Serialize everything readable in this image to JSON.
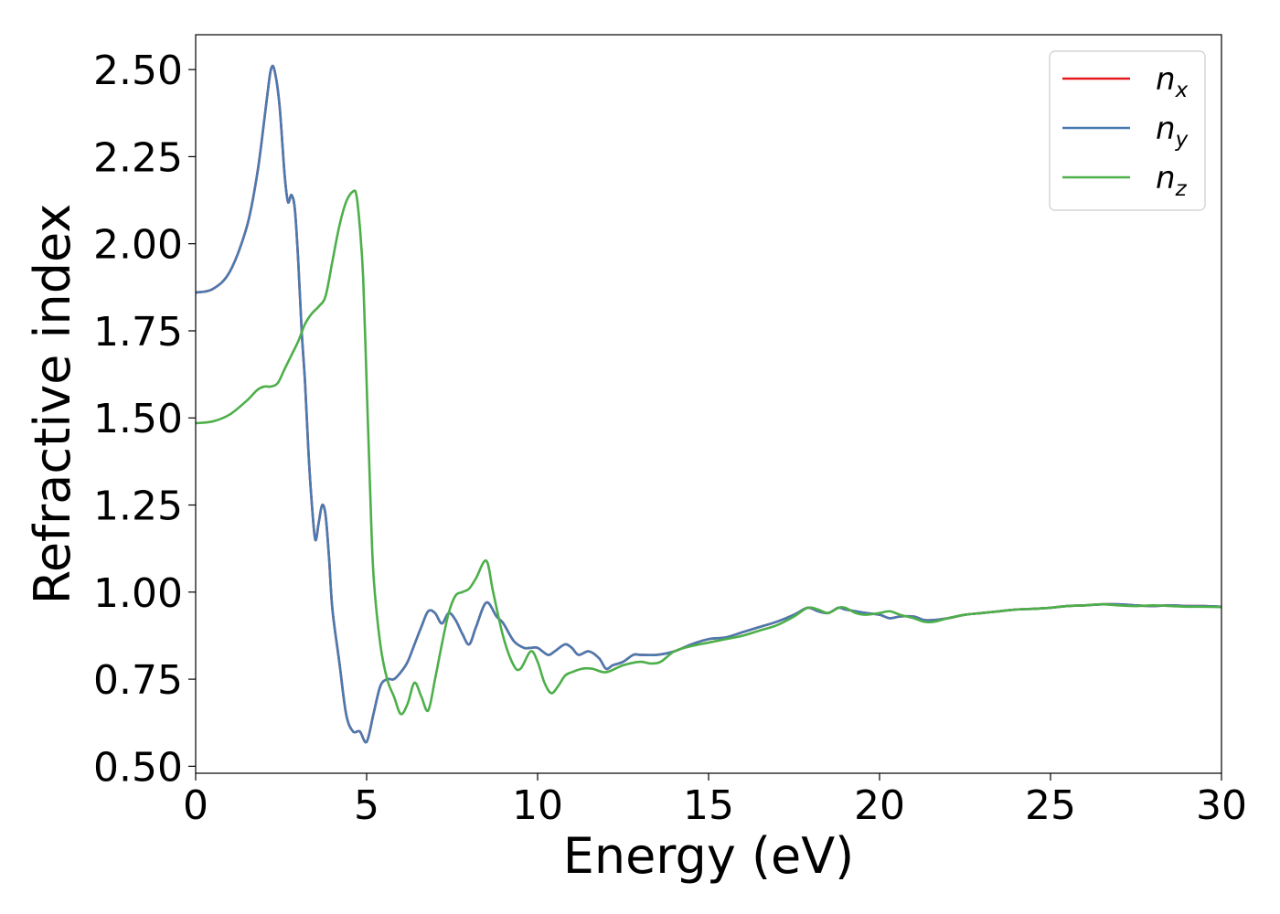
{
  "chart_data": {
    "type": "line",
    "xlabel": "Energy (eV)",
    "ylabel": "Refractive index",
    "xlim": [
      0,
      30
    ],
    "ylim": [
      0.48,
      2.6
    ],
    "xticks": [
      0,
      5,
      10,
      15,
      20,
      25,
      30
    ],
    "xtick_labels": [
      "0",
      "5",
      "10",
      "15",
      "20",
      "25",
      "30"
    ],
    "yticks": [
      0.5,
      0.75,
      1.0,
      1.25,
      1.5,
      1.75,
      2.0,
      2.25,
      2.5
    ],
    "ytick_labels": [
      "0.50",
      "0.75",
      "1.00",
      "1.25",
      "1.50",
      "1.75",
      "2.00",
      "2.25",
      "2.50"
    ],
    "grid": false,
    "legend_position": "top-right",
    "series": [
      {
        "name": "n_x",
        "legend_base": "n",
        "legend_sub": "x",
        "color": "#e41a1c",
        "x": [
          0,
          0.5,
          1.0,
          1.5,
          1.8,
          2.0,
          2.1,
          2.2,
          2.3,
          2.45,
          2.6,
          2.7,
          2.8,
          2.9,
          3.0,
          3.1,
          3.2,
          3.3,
          3.4,
          3.5,
          3.6,
          3.7,
          3.8,
          3.9,
          4.0,
          4.2,
          4.4,
          4.6,
          4.8,
          5.0,
          5.2,
          5.4,
          5.6,
          5.8,
          6.0,
          6.2,
          6.4,
          6.6,
          6.8,
          7.0,
          7.2,
          7.4,
          7.6,
          7.8,
          8.0,
          8.2,
          8.5,
          8.8,
          9.0,
          9.3,
          9.6,
          9.8,
          10.0,
          10.3,
          10.5,
          10.8,
          11.0,
          11.2,
          11.5,
          11.8,
          12.0,
          12.2,
          12.5,
          12.8,
          13.0,
          13.5,
          14.0,
          14.5,
          15.0,
          15.5,
          16.0,
          16.5,
          17.0,
          17.5,
          17.9,
          18.2,
          18.5,
          18.8,
          19.0,
          19.3,
          19.6,
          20.0,
          20.3,
          20.6,
          21.0,
          21.3,
          21.6,
          22.0,
          22.5,
          23.0,
          23.5,
          24.0,
          24.5,
          25.0,
          25.5,
          26.0,
          26.5,
          27.0,
          27.5,
          28.0,
          28.5,
          29.0,
          29.5,
          30.0
        ],
        "values": [
          1.86,
          1.87,
          1.92,
          2.05,
          2.2,
          2.35,
          2.43,
          2.5,
          2.5,
          2.4,
          2.2,
          2.12,
          2.14,
          2.1,
          1.95,
          1.75,
          1.6,
          1.4,
          1.25,
          1.15,
          1.2,
          1.25,
          1.22,
          1.1,
          0.95,
          0.8,
          0.65,
          0.6,
          0.6,
          0.57,
          0.65,
          0.73,
          0.75,
          0.75,
          0.77,
          0.8,
          0.85,
          0.9,
          0.945,
          0.94,
          0.91,
          0.94,
          0.92,
          0.88,
          0.85,
          0.9,
          0.97,
          0.93,
          0.91,
          0.86,
          0.84,
          0.84,
          0.84,
          0.82,
          0.83,
          0.85,
          0.84,
          0.82,
          0.83,
          0.81,
          0.78,
          0.79,
          0.8,
          0.82,
          0.82,
          0.82,
          0.83,
          0.85,
          0.865,
          0.87,
          0.885,
          0.9,
          0.915,
          0.935,
          0.955,
          0.945,
          0.94,
          0.955,
          0.95,
          0.945,
          0.94,
          0.935,
          0.925,
          0.93,
          0.93,
          0.92,
          0.92,
          0.925,
          0.935,
          0.94,
          0.945,
          0.95,
          0.952,
          0.955,
          0.96,
          0.962,
          0.965,
          0.965,
          0.962,
          0.96,
          0.962,
          0.96,
          0.96,
          0.958
        ]
      },
      {
        "name": "n_y",
        "legend_base": "n",
        "legend_sub": "y",
        "color": "#4a7ab0",
        "x": [
          0,
          0.5,
          1.0,
          1.5,
          1.8,
          2.0,
          2.1,
          2.2,
          2.3,
          2.45,
          2.6,
          2.7,
          2.8,
          2.9,
          3.0,
          3.1,
          3.2,
          3.3,
          3.4,
          3.5,
          3.6,
          3.7,
          3.8,
          3.9,
          4.0,
          4.2,
          4.4,
          4.6,
          4.8,
          5.0,
          5.2,
          5.4,
          5.6,
          5.8,
          6.0,
          6.2,
          6.4,
          6.6,
          6.8,
          7.0,
          7.2,
          7.4,
          7.6,
          7.8,
          8.0,
          8.2,
          8.5,
          8.8,
          9.0,
          9.3,
          9.6,
          9.8,
          10.0,
          10.3,
          10.5,
          10.8,
          11.0,
          11.2,
          11.5,
          11.8,
          12.0,
          12.2,
          12.5,
          12.8,
          13.0,
          13.5,
          14.0,
          14.5,
          15.0,
          15.5,
          16.0,
          16.5,
          17.0,
          17.5,
          17.9,
          18.2,
          18.5,
          18.8,
          19.0,
          19.3,
          19.6,
          20.0,
          20.3,
          20.6,
          21.0,
          21.3,
          21.6,
          22.0,
          22.5,
          23.0,
          23.5,
          24.0,
          24.5,
          25.0,
          25.5,
          26.0,
          26.5,
          27.0,
          27.5,
          28.0,
          28.5,
          29.0,
          29.5,
          30.0
        ],
        "values": [
          1.86,
          1.87,
          1.92,
          2.05,
          2.2,
          2.35,
          2.43,
          2.5,
          2.5,
          2.4,
          2.2,
          2.12,
          2.14,
          2.1,
          1.95,
          1.75,
          1.6,
          1.4,
          1.25,
          1.15,
          1.2,
          1.25,
          1.22,
          1.1,
          0.95,
          0.8,
          0.65,
          0.6,
          0.6,
          0.57,
          0.65,
          0.73,
          0.75,
          0.75,
          0.77,
          0.8,
          0.85,
          0.9,
          0.945,
          0.94,
          0.91,
          0.94,
          0.92,
          0.88,
          0.85,
          0.9,
          0.97,
          0.93,
          0.91,
          0.86,
          0.84,
          0.84,
          0.84,
          0.82,
          0.83,
          0.85,
          0.84,
          0.82,
          0.83,
          0.81,
          0.78,
          0.79,
          0.8,
          0.82,
          0.82,
          0.82,
          0.83,
          0.85,
          0.865,
          0.87,
          0.885,
          0.9,
          0.915,
          0.935,
          0.955,
          0.945,
          0.94,
          0.955,
          0.95,
          0.945,
          0.94,
          0.935,
          0.925,
          0.93,
          0.93,
          0.92,
          0.92,
          0.925,
          0.935,
          0.94,
          0.945,
          0.95,
          0.952,
          0.955,
          0.96,
          0.962,
          0.965,
          0.965,
          0.962,
          0.96,
          0.962,
          0.96,
          0.96,
          0.958
        ]
      },
      {
        "name": "n_z",
        "legend_base": "n",
        "legend_sub": "z",
        "color": "#4daf4a",
        "x": [
          0,
          0.5,
          1.0,
          1.5,
          1.8,
          2.0,
          2.2,
          2.4,
          2.6,
          2.8,
          3.0,
          3.2,
          3.4,
          3.6,
          3.8,
          4.0,
          4.2,
          4.4,
          4.6,
          4.7,
          4.8,
          4.9,
          5.0,
          5.1,
          5.2,
          5.4,
          5.6,
          5.8,
          6.0,
          6.2,
          6.4,
          6.6,
          6.8,
          7.0,
          7.2,
          7.4,
          7.6,
          7.8,
          8.0,
          8.2,
          8.5,
          8.7,
          9.0,
          9.3,
          9.5,
          9.8,
          10.0,
          10.2,
          10.4,
          10.6,
          10.8,
          11.0,
          11.3,
          11.6,
          12.0,
          12.5,
          13.0,
          13.3,
          13.6,
          14.0,
          14.5,
          15.0,
          15.5,
          16.0,
          16.5,
          17.0,
          17.5,
          17.9,
          18.2,
          18.5,
          18.8,
          19.0,
          19.3,
          19.6,
          20.0,
          20.3,
          20.6,
          21.0,
          21.3,
          21.6,
          22.0,
          22.5,
          23.0,
          23.5,
          24.0,
          24.5,
          25.0,
          25.5,
          26.0,
          26.5,
          27.0,
          27.5,
          28.0,
          28.5,
          29.0,
          29.5,
          30.0
        ],
        "values": [
          1.485,
          1.49,
          1.51,
          1.55,
          1.58,
          1.59,
          1.59,
          1.6,
          1.64,
          1.68,
          1.72,
          1.77,
          1.8,
          1.82,
          1.85,
          1.95,
          2.05,
          2.12,
          2.15,
          2.14,
          2.05,
          1.9,
          1.6,
          1.3,
          1.05,
          0.85,
          0.75,
          0.7,
          0.65,
          0.68,
          0.74,
          0.7,
          0.66,
          0.75,
          0.85,
          0.94,
          0.99,
          1.0,
          1.01,
          1.04,
          1.09,
          1.0,
          0.87,
          0.79,
          0.78,
          0.83,
          0.8,
          0.74,
          0.71,
          0.73,
          0.76,
          0.77,
          0.78,
          0.78,
          0.77,
          0.79,
          0.8,
          0.795,
          0.8,
          0.83,
          0.845,
          0.855,
          0.865,
          0.875,
          0.89,
          0.905,
          0.93,
          0.955,
          0.95,
          0.94,
          0.955,
          0.955,
          0.94,
          0.935,
          0.94,
          0.945,
          0.935,
          0.925,
          0.915,
          0.915,
          0.925,
          0.935,
          0.94,
          0.945,
          0.95,
          0.952,
          0.955,
          0.96,
          0.962,
          0.965,
          0.962,
          0.96,
          0.962,
          0.96,
          0.958,
          0.958,
          0.957
        ]
      }
    ]
  }
}
